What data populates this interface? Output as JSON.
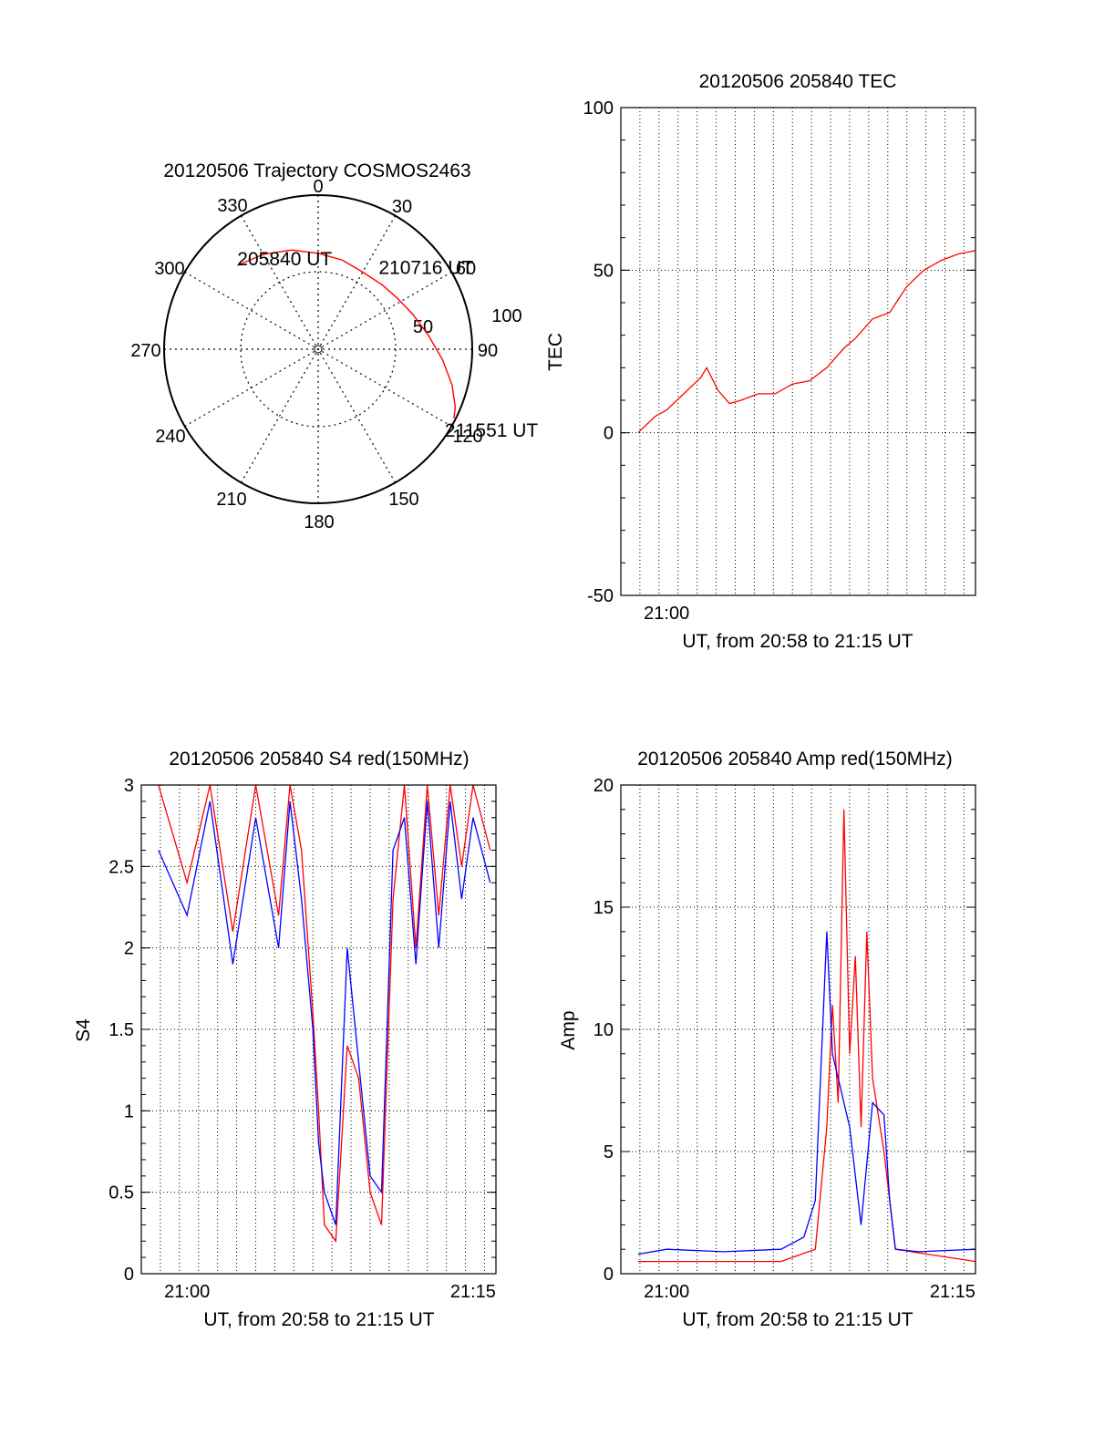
{
  "page": {
    "background": "#ffffff"
  },
  "chart_data": [
    {
      "id": "trajectory",
      "type": "polar",
      "title": "20120506 Trajectory COSMOS2463",
      "azimuth_labels": [
        "0",
        "30",
        "60",
        "90",
        "120",
        "150",
        "180",
        "210",
        "240",
        "270",
        "300",
        "330"
      ],
      "elevation_rings": [
        0,
        50
      ],
      "elevation_labels": [
        "50",
        "100"
      ],
      "grid": true,
      "trajectory_color": "#ff0000",
      "trajectory": [
        {
          "az": 316,
          "el": 22
        },
        {
          "az": 330,
          "el": 26
        },
        {
          "az": 345,
          "el": 30
        },
        {
          "az": 0,
          "el": 34
        },
        {
          "az": 15,
          "el": 36
        },
        {
          "az": 30,
          "el": 38
        },
        {
          "az": 45,
          "el": 37
        },
        {
          "az": 57,
          "el": 35
        },
        {
          "az": 70,
          "el": 31
        },
        {
          "az": 83,
          "el": 25
        },
        {
          "az": 95,
          "el": 17
        },
        {
          "az": 105,
          "el": 9
        },
        {
          "az": 113,
          "el": 3
        },
        {
          "az": 117,
          "el": 1
        }
      ],
      "annotations": [
        {
          "text": "205840 UT",
          "az": 316,
          "el": 22
        },
        {
          "text": "210716 UT",
          "az": 45,
          "el": 37
        },
        {
          "text": "211551 UT",
          "az": 117,
          "el": 1
        }
      ]
    },
    {
      "id": "tec",
      "type": "line",
      "title": "20120506 205840 TEC",
      "xlabel": "UT, from 20:58 to 21:15 UT",
      "ylabel": "TEC",
      "xlim": [
        20.96,
        21.27
      ],
      "ylim": [
        -50,
        100
      ],
      "yticks": [
        -50,
        0,
        50,
        100
      ],
      "xticks": [
        {
          "value": 21.0,
          "label": "21:00"
        }
      ],
      "grid": true,
      "series": [
        {
          "color": "#ff0000",
          "x": [
            20.975,
            20.99,
            21.0,
            21.015,
            21.03,
            21.035,
            21.045,
            21.055,
            21.065,
            21.08,
            21.095,
            21.11,
            21.125,
            21.14,
            21.155,
            21.165,
            21.18,
            21.195,
            21.21,
            21.225,
            21.24,
            21.255,
            21.27
          ],
          "y": [
            0,
            5,
            7,
            12,
            17,
            20,
            13,
            9,
            10,
            12,
            12,
            15,
            16,
            20,
            26,
            29,
            35,
            37,
            45,
            50,
            53,
            55,
            56
          ]
        }
      ]
    },
    {
      "id": "s4",
      "type": "line",
      "title": "20120506 205840 S4 red(150MHz)",
      "xlabel": "UT, from 20:58 to 21:15 UT",
      "ylabel": "S4",
      "xlim": [
        20.96,
        21.27
      ],
      "ylim": [
        0,
        3
      ],
      "yticks": [
        0,
        0.5,
        1,
        1.5,
        2,
        2.5,
        3
      ],
      "ytick_labels": [
        "0",
        "0.5",
        "1",
        "1.5",
        "2",
        "2.5",
        "3"
      ],
      "xticks": [
        {
          "value": 21.0,
          "label": "21:00"
        },
        {
          "value": 21.25,
          "label": "21:15"
        }
      ],
      "grid": true,
      "series": [
        {
          "color": "#ff0000",
          "x": [
            20.975,
            21.0,
            21.02,
            21.04,
            21.06,
            21.08,
            21.09,
            21.1,
            21.11,
            21.115,
            21.12,
            21.13,
            21.14,
            21.15,
            21.16,
            21.17,
            21.18,
            21.19,
            21.2,
            21.21,
            21.22,
            21.23,
            21.24,
            21.25,
            21.265
          ],
          "y": [
            3.0,
            2.4,
            3.0,
            2.1,
            3.0,
            2.2,
            3.0,
            2.6,
            1.6,
            1.0,
            0.3,
            0.2,
            1.4,
            1.2,
            0.5,
            0.3,
            2.3,
            3.0,
            2.0,
            3.0,
            2.2,
            3.0,
            2.5,
            3.0,
            2.6
          ]
        },
        {
          "color": "#0000ff",
          "x": [
            20.975,
            21.0,
            21.02,
            21.04,
            21.06,
            21.08,
            21.09,
            21.1,
            21.11,
            21.115,
            21.12,
            21.13,
            21.14,
            21.15,
            21.16,
            21.17,
            21.18,
            21.19,
            21.2,
            21.21,
            21.22,
            21.23,
            21.24,
            21.25,
            21.265
          ],
          "y": [
            2.6,
            2.2,
            2.9,
            1.9,
            2.8,
            2.0,
            2.9,
            2.3,
            1.5,
            0.8,
            0.5,
            0.3,
            2.0,
            1.3,
            0.6,
            0.5,
            2.6,
            2.8,
            1.9,
            2.9,
            2.0,
            2.9,
            2.3,
            2.8,
            2.4
          ]
        }
      ]
    },
    {
      "id": "amp",
      "type": "line",
      "title": "20120506 205840 Amp red(150MHz)",
      "xlabel": "UT, from 20:58 to 21:15 UT",
      "ylabel": "Amp",
      "xlim": [
        20.96,
        21.27
      ],
      "ylim": [
        0,
        20
      ],
      "yticks": [
        0,
        5,
        10,
        15,
        20
      ],
      "xticks": [
        {
          "value": 21.0,
          "label": "21:00"
        },
        {
          "value": 21.25,
          "label": "21:15"
        }
      ],
      "grid": true,
      "series": [
        {
          "color": "#ff0000",
          "x": [
            20.975,
            21.1,
            21.13,
            21.14,
            21.145,
            21.15,
            21.155,
            21.16,
            21.165,
            21.17,
            21.175,
            21.18,
            21.19,
            21.2,
            21.27
          ],
          "y": [
            0.5,
            0.5,
            1.0,
            6.0,
            11.0,
            7.0,
            19.0,
            9.0,
            13.0,
            6.0,
            14.0,
            8.0,
            5.0,
            1.0,
            0.5
          ]
        },
        {
          "color": "#0000ff",
          "x": [
            20.975,
            21.0,
            21.05,
            21.1,
            21.12,
            21.13,
            21.14,
            21.145,
            21.15,
            21.16,
            21.17,
            21.18,
            21.19,
            21.195,
            21.2,
            21.22,
            21.27
          ],
          "y": [
            0.8,
            1.0,
            0.9,
            1.0,
            1.5,
            3.0,
            14.0,
            9.0,
            8.0,
            6.0,
            2.0,
            7.0,
            6.5,
            3.0,
            1.0,
            0.9,
            1.0
          ]
        }
      ]
    }
  ]
}
